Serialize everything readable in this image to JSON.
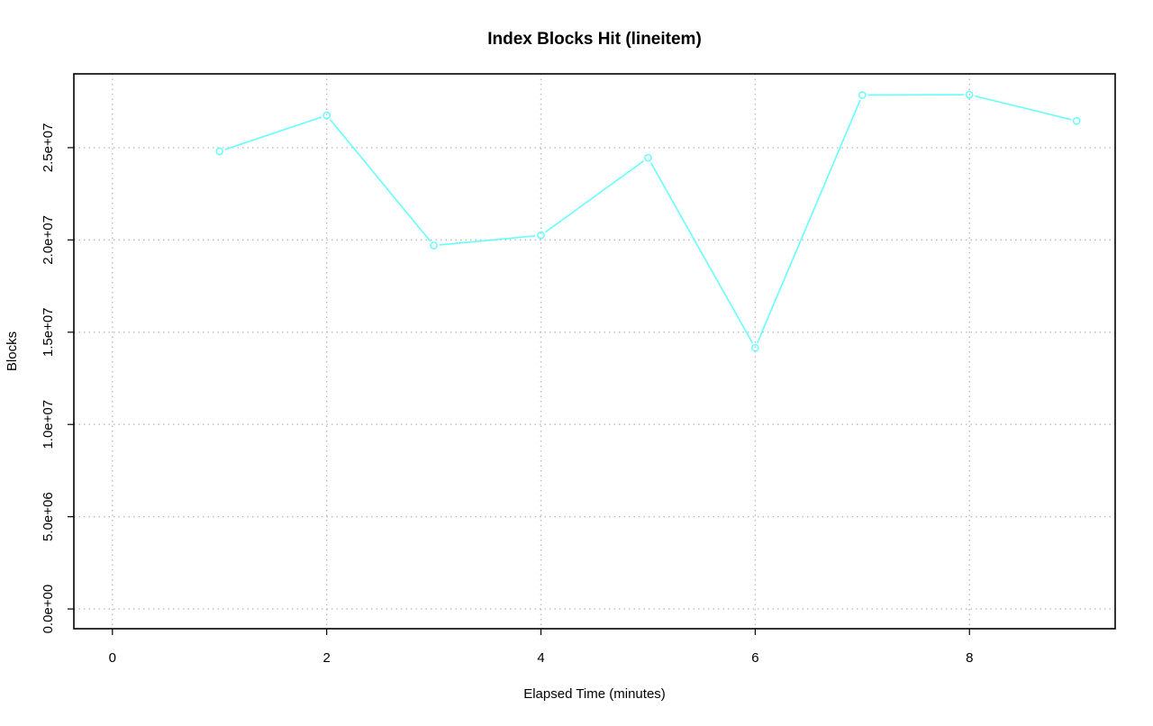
{
  "chart_data": {
    "type": "line",
    "title": "Index Blocks Hit (lineitem)",
    "xlabel": "Elapsed Time (minutes)",
    "ylabel": "Blocks",
    "xlim": [
      -0.36,
      9.36
    ],
    "ylim": [
      -1070000,
      29000000
    ],
    "x_ticks": [
      0,
      2,
      4,
      6,
      8
    ],
    "x_tick_labels": [
      "0",
      "2",
      "4",
      "6",
      "8"
    ],
    "y_ticks": [
      0,
      5000000,
      10000000,
      15000000,
      20000000,
      25000000
    ],
    "y_tick_labels": [
      "0.0e+00",
      "5.0e+06",
      "1.0e+07",
      "1.5e+07",
      "2.0e+07",
      "2.5e+07"
    ],
    "grid": true,
    "legend": "none",
    "series": [
      {
        "color": "#66ffff",
        "marker": "open-circle",
        "x": [
          1,
          2,
          3,
          4,
          5,
          6,
          7,
          8,
          9
        ],
        "values": [
          24800000,
          26750000,
          19700000,
          20250000,
          24450000,
          14150000,
          27850000,
          27870000,
          26450000
        ]
      }
    ]
  }
}
